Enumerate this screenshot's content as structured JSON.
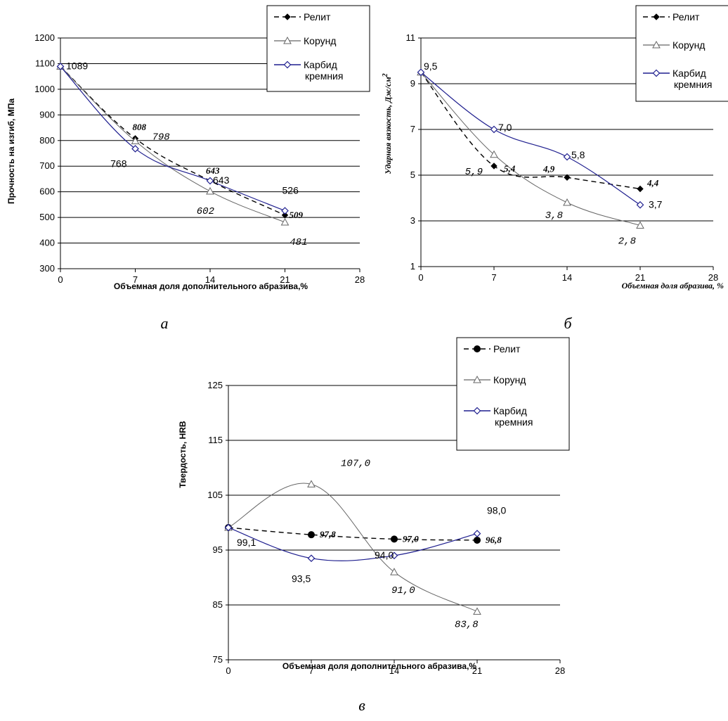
{
  "colors": {
    "relit": "#000000",
    "korund": "#666666",
    "karbid": "#1f1f8f",
    "grid": "#000000"
  },
  "chart_data": [
    {
      "type": "line",
      "caption": "а",
      "ylabel": "Прочность на изгиб, МПа",
      "xlabel": "Объемная доля дополнительного абразива,%",
      "x_ticks": [
        "0",
        "7",
        "14",
        "21",
        "28"
      ],
      "y_ticks": [
        "300",
        "400",
        "500",
        "600",
        "700",
        "800",
        "900",
        "1000",
        "1100",
        "1200"
      ],
      "xlim": [
        0,
        28
      ],
      "ylim": [
        300,
        1200
      ],
      "legend_position": "top-right",
      "series": [
        {
          "name": "Релит",
          "x": [
            0,
            7,
            14,
            21
          ],
          "y": [
            1089,
            808,
            643,
            509
          ]
        },
        {
          "name": "Корунд",
          "x": [
            0,
            7,
            14,
            21
          ],
          "y": [
            1089,
            798,
            602,
            481
          ]
        },
        {
          "name": "Карбид кремния",
          "x": [
            0,
            7,
            14,
            21
          ],
          "y": [
            1089,
            768,
            643,
            526
          ]
        }
      ],
      "labels": [
        {
          "text": "1089",
          "x": 0,
          "y": 1089,
          "style": "dl"
        },
        {
          "text": "808",
          "x": 7,
          "y": 808,
          "style": "dl-bold"
        },
        {
          "text": "798",
          "x": 7,
          "y": 798,
          "style": "dl-mono"
        },
        {
          "text": "768",
          "x": 7,
          "y": 768,
          "style": "dl"
        },
        {
          "text": "643",
          "x": 14,
          "y": 643,
          "style": "dl-bold"
        },
        {
          "text": "643",
          "x": 14,
          "y": 643,
          "style": "dl"
        },
        {
          "text": "602",
          "x": 14,
          "y": 602,
          "style": "dl-mono"
        },
        {
          "text": "526",
          "x": 21,
          "y": 526,
          "style": "dl"
        },
        {
          "text": "509",
          "x": 21,
          "y": 509,
          "style": "dl-bold"
        },
        {
          "text": "481",
          "x": 21,
          "y": 481,
          "style": "dl-mono"
        }
      ]
    },
    {
      "type": "line",
      "caption": "б",
      "ylabel": "Ударная вязкость, Дж/см",
      "ylabel_sup": "2",
      "xlabel": "Объемная доля абразива, %",
      "x_ticks": [
        "0",
        "7",
        "14",
        "21",
        "28"
      ],
      "y_ticks": [
        "1",
        "3",
        "5",
        "7",
        "9",
        "11"
      ],
      "xlim": [
        0,
        28
      ],
      "ylim": [
        1,
        11
      ],
      "legend_position": "top-right",
      "series": [
        {
          "name": "Релит",
          "x": [
            0,
            7,
            14,
            21
          ],
          "y": [
            9.5,
            5.4,
            4.9,
            4.4
          ]
        },
        {
          "name": "Корунд",
          "x": [
            0,
            7,
            14,
            21
          ],
          "y": [
            9.5,
            5.9,
            3.8,
            2.8
          ]
        },
        {
          "name": "Карбид кремния",
          "x": [
            0,
            7,
            14,
            21
          ],
          "y": [
            9.5,
            7.0,
            5.8,
            3.7
          ]
        }
      ],
      "labels": [
        {
          "text": "9,5",
          "x": 0,
          "y": 9.5,
          "style": "dl"
        },
        {
          "text": "7,0",
          "x": 7,
          "y": 7.0,
          "style": "dl"
        },
        {
          "text": "5,4",
          "x": 7,
          "y": 5.4,
          "style": "dl-bold"
        },
        {
          "text": "5,9",
          "x": 7,
          "y": 5.9,
          "style": "dl-mono"
        },
        {
          "text": "5,8",
          "x": 14,
          "y": 5.8,
          "style": "dl"
        },
        {
          "text": "4,9",
          "x": 14,
          "y": 4.9,
          "style": "dl-bold"
        },
        {
          "text": "3,8",
          "x": 14,
          "y": 3.8,
          "style": "dl-mono"
        },
        {
          "text": "4,4",
          "x": 21,
          "y": 4.4,
          "style": "dl-bold"
        },
        {
          "text": "3,7",
          "x": 21,
          "y": 3.7,
          "style": "dl"
        },
        {
          "text": "2,8",
          "x": 21,
          "y": 2.8,
          "style": "dl-mono"
        }
      ]
    },
    {
      "type": "line",
      "caption": "в",
      "ylabel": "Твердость, HRB",
      "xlabel": "Объемная доля дополнительного абразива,%",
      "x_ticks": [
        "0",
        "7",
        "14",
        "21",
        "28"
      ],
      "y_ticks": [
        "75",
        "85",
        "95",
        "105",
        "115",
        "125"
      ],
      "xlim": [
        0,
        28
      ],
      "ylim": [
        75,
        125
      ],
      "legend_position": "top-right",
      "series": [
        {
          "name": "Релит",
          "x": [
            0,
            7,
            14,
            21
          ],
          "y": [
            99.1,
            97.8,
            97.0,
            96.8
          ]
        },
        {
          "name": "Корунд",
          "x": [
            0,
            7,
            14,
            21
          ],
          "y": [
            99.1,
            107.0,
            91.0,
            83.8
          ]
        },
        {
          "name": "Карбид кремния",
          "x": [
            0,
            7,
            14,
            21
          ],
          "y": [
            99.1,
            93.5,
            94.0,
            98.0
          ]
        }
      ],
      "labels": [
        {
          "text": "99,1",
          "x": 0,
          "y": 99.1,
          "style": "dl"
        },
        {
          "text": "107,0",
          "x": 7,
          "y": 107.0,
          "style": "dl-mono"
        },
        {
          "text": "97,8",
          "x": 7,
          "y": 97.8,
          "style": "dl-bold"
        },
        {
          "text": "93,5",
          "x": 7,
          "y": 93.5,
          "style": "dl"
        },
        {
          "text": "97,0",
          "x": 14,
          "y": 97.0,
          "style": "dl-bold"
        },
        {
          "text": "94,0",
          "x": 14,
          "y": 94.0,
          "style": "dl"
        },
        {
          "text": "91,0",
          "x": 14,
          "y": 91.0,
          "style": "dl-mono"
        },
        {
          "text": "98,0",
          "x": 21,
          "y": 98.0,
          "style": "dl"
        },
        {
          "text": "96,8",
          "x": 21,
          "y": 96.8,
          "style": "dl-bold"
        },
        {
          "text": "83,8",
          "x": 21,
          "y": 83.8,
          "style": "dl-mono"
        }
      ]
    }
  ]
}
